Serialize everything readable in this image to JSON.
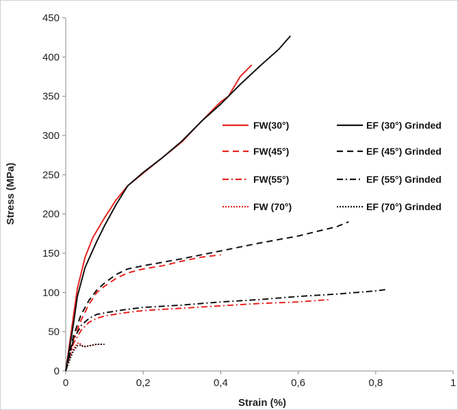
{
  "chart_data": {
    "type": "line",
    "xlabel": "Strain (%)",
    "ylabel": "Stress (MPa)",
    "xlim": [
      0,
      1
    ],
    "ylim": [
      0,
      450
    ],
    "x_ticks": [
      "0",
      "0,2",
      "0,4",
      "0,6",
      "0,8",
      "1"
    ],
    "y_ticks": [
      "0",
      "50",
      "100",
      "150",
      "200",
      "250",
      "300",
      "350",
      "400",
      "450"
    ],
    "grid": false,
    "legend_position": "right",
    "series": [
      {
        "name": "FW(30°)",
        "color": "#e8231f",
        "dash": "solid",
        "points": [
          [
            0,
            0
          ],
          [
            0.01,
            35
          ],
          [
            0.02,
            70
          ],
          [
            0.03,
            105
          ],
          [
            0.05,
            145
          ],
          [
            0.07,
            170
          ],
          [
            0.1,
            195
          ],
          [
            0.13,
            218
          ],
          [
            0.16,
            236
          ],
          [
            0.2,
            252
          ],
          [
            0.25,
            272
          ],
          [
            0.3,
            292
          ],
          [
            0.35,
            318
          ],
          [
            0.4,
            343
          ],
          [
            0.42,
            350
          ],
          [
            0.45,
            375
          ],
          [
            0.48,
            390
          ]
        ]
      },
      {
        "name": "FW(45°)",
        "color": "#e8231f",
        "dash": "dashed",
        "points": [
          [
            0,
            0
          ],
          [
            0.02,
            40
          ],
          [
            0.04,
            65
          ],
          [
            0.06,
            85
          ],
          [
            0.08,
            100
          ],
          [
            0.1,
            108
          ],
          [
            0.13,
            118
          ],
          [
            0.16,
            125
          ],
          [
            0.2,
            130
          ],
          [
            0.25,
            134
          ],
          [
            0.3,
            140
          ],
          [
            0.35,
            145
          ],
          [
            0.4,
            148
          ]
        ]
      },
      {
        "name": "FW(55°)",
        "color": "#e8231f",
        "dash": "dashdot",
        "points": [
          [
            0,
            0
          ],
          [
            0.02,
            35
          ],
          [
            0.04,
            52
          ],
          [
            0.06,
            62
          ],
          [
            0.08,
            67
          ],
          [
            0.1,
            70
          ],
          [
            0.15,
            74
          ],
          [
            0.2,
            77
          ],
          [
            0.3,
            80
          ],
          [
            0.4,
            83
          ],
          [
            0.5,
            86
          ],
          [
            0.6,
            88
          ],
          [
            0.68,
            91
          ]
        ]
      },
      {
        "name": "FW (70°)",
        "color": "#e8231f",
        "dash": "dotted",
        "points": [
          [
            0,
            0
          ],
          [
            0.01,
            15
          ],
          [
            0.02,
            28
          ],
          [
            0.03,
            35
          ],
          [
            0.035,
            36
          ],
          [
            0.04,
            33
          ],
          [
            0.05,
            31
          ],
          [
            0.06,
            32
          ],
          [
            0.07,
            33
          ],
          [
            0.08,
            34
          ],
          [
            0.09,
            34
          ]
        ]
      },
      {
        "name": "EF (30°) Grinded",
        "color": "#111111",
        "dash": "solid",
        "points": [
          [
            0,
            0
          ],
          [
            0.01,
            30
          ],
          [
            0.02,
            60
          ],
          [
            0.03,
            95
          ],
          [
            0.05,
            132
          ],
          [
            0.08,
            165
          ],
          [
            0.1,
            185
          ],
          [
            0.13,
            212
          ],
          [
            0.16,
            236
          ],
          [
            0.2,
            253
          ],
          [
            0.25,
            272
          ],
          [
            0.3,
            293
          ],
          [
            0.35,
            318
          ],
          [
            0.4,
            340
          ],
          [
            0.45,
            365
          ],
          [
            0.5,
            388
          ],
          [
            0.55,
            410
          ],
          [
            0.58,
            427
          ]
        ]
      },
      {
        "name": "EF (45°) Grinded",
        "color": "#111111",
        "dash": "dashed",
        "points": [
          [
            0,
            0
          ],
          [
            0.02,
            45
          ],
          [
            0.04,
            72
          ],
          [
            0.06,
            90
          ],
          [
            0.08,
            103
          ],
          [
            0.1,
            112
          ],
          [
            0.13,
            123
          ],
          [
            0.16,
            130
          ],
          [
            0.2,
            134
          ],
          [
            0.3,
            143
          ],
          [
            0.4,
            153
          ],
          [
            0.5,
            163
          ],
          [
            0.6,
            172
          ],
          [
            0.7,
            184
          ],
          [
            0.73,
            190
          ]
        ]
      },
      {
        "name": "EF (55°) Grinded",
        "color": "#111111",
        "dash": "dashdot",
        "points": [
          [
            0,
            0
          ],
          [
            0.02,
            40
          ],
          [
            0.04,
            58
          ],
          [
            0.06,
            67
          ],
          [
            0.08,
            72
          ],
          [
            0.1,
            74
          ],
          [
            0.15,
            78
          ],
          [
            0.2,
            81
          ],
          [
            0.3,
            84
          ],
          [
            0.4,
            88
          ],
          [
            0.5,
            91
          ],
          [
            0.6,
            95
          ],
          [
            0.7,
            98
          ],
          [
            0.8,
            102
          ],
          [
            0.83,
            104
          ]
        ]
      },
      {
        "name": "EF (70°) Grinded",
        "color": "#111111",
        "dash": "dotted",
        "points": [
          [
            0,
            0
          ],
          [
            0.01,
            14
          ],
          [
            0.02,
            26
          ],
          [
            0.03,
            32
          ],
          [
            0.04,
            33
          ],
          [
            0.045,
            31
          ],
          [
            0.06,
            32
          ],
          [
            0.08,
            34
          ],
          [
            0.1,
            34
          ]
        ]
      }
    ]
  }
}
